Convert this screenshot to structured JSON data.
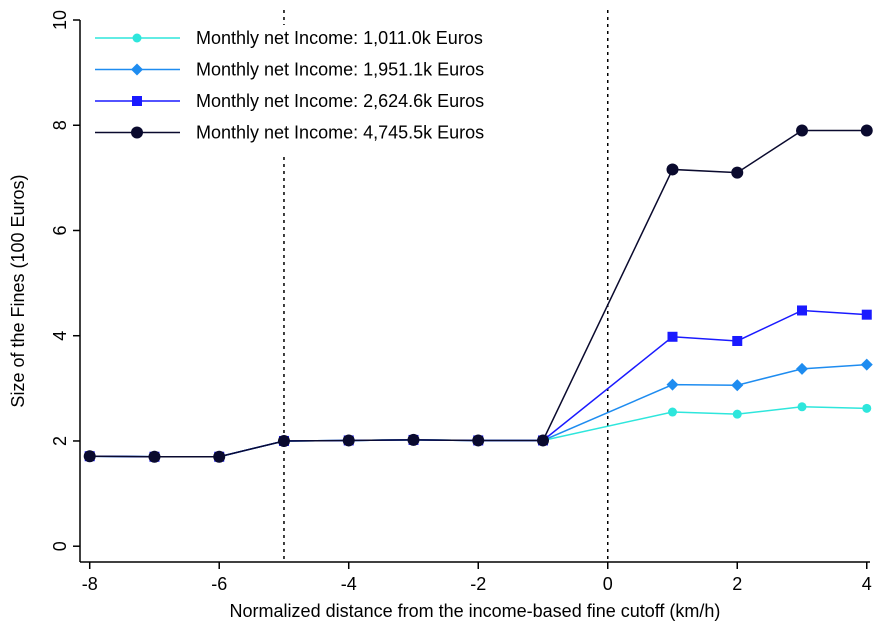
{
  "chart_data": {
    "type": "line",
    "xlabel": "Normalized distance from the income-based fine cutoff (km/h)",
    "ylabel": "Size of the Fines (100 Euros)",
    "x": [
      -8,
      -7,
      -6,
      -5,
      -4,
      -3,
      -2,
      -1,
      1,
      2,
      3,
      4
    ],
    "series": [
      {
        "name": "Monthly net Income: 1,011.0k Euros",
        "color": "#2ee6dc",
        "marker": "circle",
        "values": [
          1.71,
          1.7,
          1.7,
          2.0,
          2.01,
          2.02,
          2.01,
          2.01,
          2.55,
          2.51,
          2.65,
          2.62
        ]
      },
      {
        "name": "Monthly net Income: 1,951.1k Euros",
        "color": "#1e8cf0",
        "marker": "diamond",
        "values": [
          1.71,
          1.7,
          1.7,
          2.0,
          2.01,
          2.02,
          2.01,
          2.01,
          3.07,
          3.06,
          3.37,
          3.45
        ]
      },
      {
        "name": "Monthly net Income: 2,624.6k Euros",
        "color": "#1a1aff",
        "marker": "square",
        "values": [
          1.71,
          1.7,
          1.7,
          2.0,
          2.01,
          2.02,
          2.01,
          2.01,
          3.98,
          3.9,
          4.48,
          4.4
        ]
      },
      {
        "name": "Monthly net Income: 4,745.5k Euros",
        "color": "#0a0a2e",
        "marker": "bigcircle",
        "values": [
          1.71,
          1.7,
          1.7,
          2.0,
          2.01,
          2.02,
          2.01,
          2.01,
          7.16,
          7.1,
          7.9,
          7.9
        ]
      }
    ],
    "vlines": [
      -5,
      0
    ],
    "xlim": [
      -8.15,
      4.05
    ],
    "xticks": [
      -8,
      -6,
      -4,
      -2,
      0,
      2,
      4
    ],
    "ylim": [
      -0.3,
      10
    ],
    "yticks": [
      0,
      2,
      4,
      6,
      8,
      10
    ],
    "legend": "upper left"
  }
}
